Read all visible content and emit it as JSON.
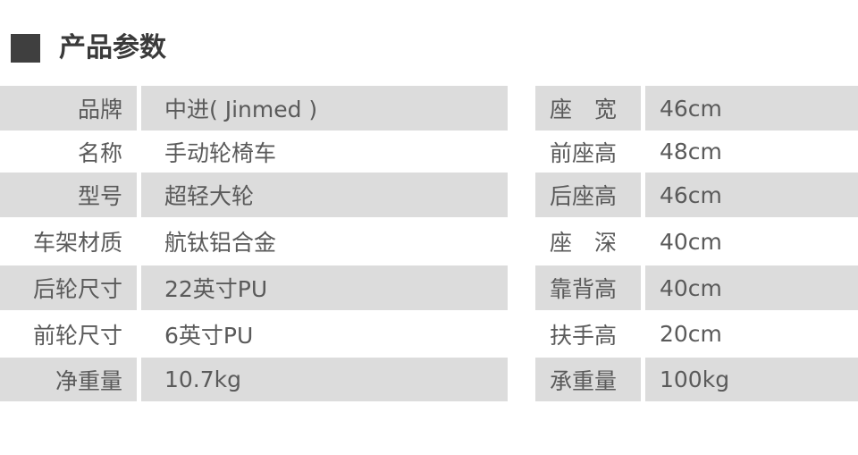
{
  "title": "产品参数",
  "left": [
    {
      "label": "品牌",
      "value": "中进( Jinmed )"
    },
    {
      "label": "名称",
      "value": "手动轮椅车"
    },
    {
      "label": "型号",
      "value": "超轻大轮"
    },
    {
      "label": "车架材质",
      "value": "航钛铝合金"
    },
    {
      "label": "后轮尺寸",
      "value": "22英寸PU"
    },
    {
      "label": "前轮尺寸",
      "value": "6英寸PU"
    },
    {
      "label": "净重量",
      "value": "10.7kg"
    }
  ],
  "right": [
    {
      "label": "座　宽",
      "value": "46cm"
    },
    {
      "label": "前座高",
      "value": "48cm"
    },
    {
      "label": "后座高",
      "value": "46cm"
    },
    {
      "label": "座　深",
      "value": "40cm"
    },
    {
      "label": "靠背高",
      "value": "40cm"
    },
    {
      "label": "扶手高",
      "value": "20cm"
    },
    {
      "label": "承重量",
      "value": "100kg"
    }
  ]
}
